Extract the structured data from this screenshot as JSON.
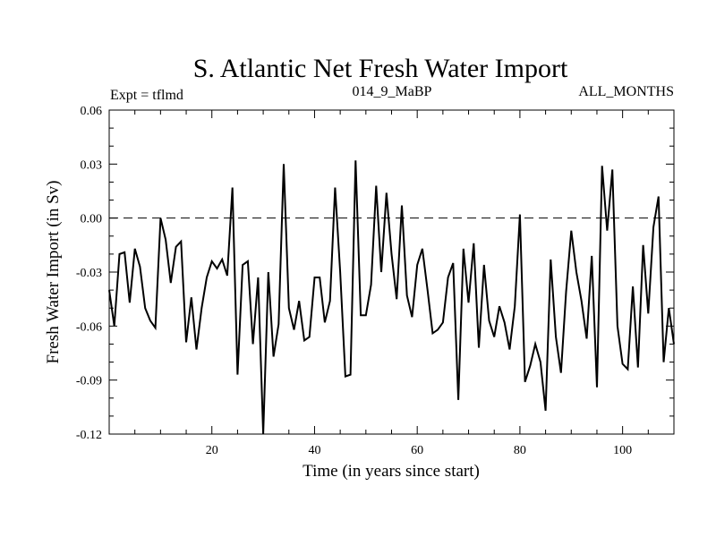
{
  "chart_data": {
    "type": "line",
    "title": "S. Atlantic Net Fresh Water Import",
    "subtitle_left": "Expt = tflmd",
    "subtitle_center": "014_9_MaBP",
    "subtitle_right": "ALL_MONTHS",
    "xlabel": "Time (in years since start)",
    "ylabel": "Fresh Water Import (in Sv)",
    "xlim": [
      0,
      110
    ],
    "ylim": [
      -0.12,
      0.06
    ],
    "xticks": [
      20,
      40,
      60,
      80,
      100
    ],
    "xtick_labels": [
      "20",
      "40",
      "60",
      "80",
      "100"
    ],
    "yticks": [
      0.06,
      0.03,
      0.0,
      -0.03,
      -0.06,
      -0.09,
      -0.12
    ],
    "ytick_labels": [
      "0.06",
      "0.03",
      "0.00",
      "-0.03",
      "-0.06",
      "-0.09",
      "-0.12"
    ],
    "reference_line": 0.0,
    "grid": false,
    "series": [
      {
        "name": "Net Fresh Water Import",
        "color": "#000000",
        "x": [
          0,
          1,
          2,
          3,
          4,
          5,
          6,
          7,
          8,
          9,
          10,
          11,
          12,
          13,
          14,
          15,
          16,
          17,
          18,
          19,
          20,
          21,
          22,
          23,
          24,
          25,
          26,
          27,
          28,
          29,
          30,
          31,
          32,
          33,
          34,
          35,
          36,
          37,
          38,
          39,
          40,
          41,
          42,
          43,
          44,
          45,
          46,
          47,
          48,
          49,
          50,
          51,
          52,
          53,
          54,
          55,
          56,
          57,
          58,
          59,
          60,
          61,
          62,
          63,
          64,
          65,
          66,
          67,
          68,
          69,
          70,
          71,
          72,
          73,
          74,
          75,
          76,
          77,
          78,
          79,
          80,
          81,
          82,
          83,
          84,
          85,
          86,
          87,
          88,
          89,
          90,
          91,
          92,
          93,
          94,
          95,
          96,
          97,
          98,
          99,
          100,
          101,
          102,
          103,
          104,
          105,
          106,
          107,
          108,
          109,
          110
        ],
        "values": [
          -0.04,
          -0.06,
          -0.02,
          -0.019,
          -0.047,
          -0.017,
          -0.027,
          -0.05,
          -0.057,
          -0.061,
          0.0,
          -0.012,
          -0.036,
          -0.016,
          -0.013,
          -0.069,
          -0.044,
          -0.073,
          -0.05,
          -0.033,
          -0.024,
          -0.028,
          -0.023,
          -0.032,
          0.017,
          -0.087,
          -0.026,
          -0.024,
          -0.07,
          -0.033,
          -0.12,
          -0.03,
          -0.077,
          -0.059,
          0.03,
          -0.05,
          -0.062,
          -0.046,
          -0.068,
          -0.066,
          -0.033,
          -0.033,
          -0.058,
          -0.046,
          0.017,
          -0.03,
          -0.088,
          -0.087,
          0.032,
          -0.054,
          -0.054,
          -0.037,
          0.018,
          -0.03,
          0.014,
          -0.02,
          -0.045,
          0.007,
          -0.043,
          -0.055,
          -0.026,
          -0.017,
          -0.04,
          -0.064,
          -0.062,
          -0.058,
          -0.033,
          -0.025,
          -0.101,
          -0.017,
          -0.047,
          -0.014,
          -0.072,
          -0.026,
          -0.057,
          -0.066,
          -0.049,
          -0.058,
          -0.073,
          -0.049,
          0.002,
          -0.091,
          -0.082,
          -0.07,
          -0.08,
          -0.107,
          -0.023,
          -0.066,
          -0.086,
          -0.041,
          -0.007,
          -0.03,
          -0.046,
          -0.067,
          -0.021,
          -0.094,
          0.029,
          -0.007,
          0.027,
          -0.06,
          -0.081,
          -0.084,
          -0.038,
          -0.083,
          -0.015,
          -0.053,
          -0.005,
          0.012,
          -0.08,
          -0.05,
          -0.07
        ]
      }
    ]
  }
}
